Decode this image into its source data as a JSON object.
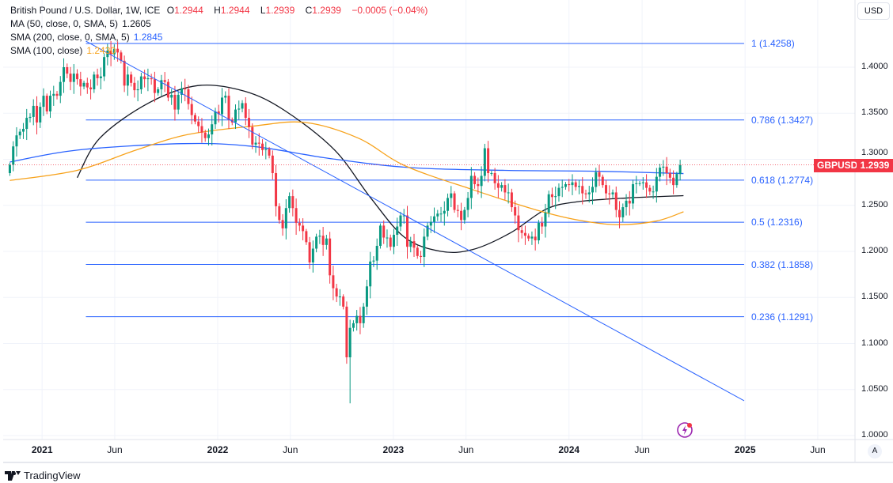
{
  "header": {
    "symbol_title": "British Pound / U.S. Dollar, 1W, ICE",
    "open_label": "O",
    "open": "1.2944",
    "high_label": "H",
    "high": "1.2944",
    "low_label": "L",
    "low": "1.2939",
    "close_label": "C",
    "close": "1.2939",
    "change": "−0.0005 (−0.04%)"
  },
  "indicators": [
    {
      "label": "MA (50, close, 0, SMA, 5)",
      "value": "1.2605",
      "color": "#131722"
    },
    {
      "label": "SMA (200, close, 0, SMA, 5)",
      "value": "1.2845",
      "color": "#2962ff"
    },
    {
      "label": "SMA (100, close)",
      "value": "1.2430",
      "color": "#f7a21b"
    }
  ],
  "price_axis": {
    "currency": "USD",
    "ticks": [
      "1.4000",
      "1.3500",
      "1.3000",
      "1.2500",
      "1.2000",
      "1.1500",
      "1.1000",
      "1.0500",
      "1.0000"
    ],
    "auto_label": "A"
  },
  "time_axis": {
    "ticks": [
      {
        "label": "2021",
        "date": "2021-01-01"
      },
      {
        "label": "Jun",
        "date": "2021-06-01"
      },
      {
        "label": "2022",
        "date": "2022-01-01"
      },
      {
        "label": "Jun",
        "date": "2022-06-01"
      },
      {
        "label": "2023",
        "date": "2023-01-01"
      },
      {
        "label": "Jun",
        "date": "2023-06-01"
      },
      {
        "label": "2024",
        "date": "2024-01-01"
      },
      {
        "label": "Jun",
        "date": "2024-06-01"
      },
      {
        "label": "2025",
        "date": "2025-01-01"
      },
      {
        "label": "Jun",
        "date": "2025-06-01"
      }
    ]
  },
  "last_price": {
    "symbol": "GBPUSD",
    "value": "1.2939",
    "color": "#f23645"
  },
  "fib_levels": [
    {
      "label": "1 (1.4258)",
      "price": 1.4258
    },
    {
      "label": "0.786 (1.3427)",
      "price": 1.3427
    },
    {
      "label": "0.618 (1.2774)",
      "price": 1.2774
    },
    {
      "label": "0.5 (1.2316)",
      "price": 1.2316
    },
    {
      "label": "0.382 (1.1858)",
      "price": 1.1858
    },
    {
      "label": "0.236 (1.1291)",
      "price": 1.1291
    }
  ],
  "brand": "TradingView",
  "chart_data": {
    "type": "candlestick",
    "interval": "1W",
    "first_week": "2020-10-26",
    "ylim": [
      1.0,
      1.44
    ],
    "colors": {
      "up": "#089981",
      "down": "#f23645",
      "fib": "#2962ff"
    },
    "closes": [
      1.294,
      1.314,
      1.326,
      1.33,
      1.333,
      1.345,
      1.346,
      1.358,
      1.34,
      1.357,
      1.369,
      1.352,
      1.369,
      1.371,
      1.369,
      1.384,
      1.4,
      1.393,
      1.384,
      1.393,
      1.387,
      1.379,
      1.383,
      1.378,
      1.376,
      1.392,
      1.388,
      1.39,
      1.411,
      1.418,
      1.414,
      1.42,
      1.416,
      1.407,
      1.38,
      1.392,
      1.383,
      1.375,
      1.376,
      1.39,
      1.387,
      1.388,
      1.387,
      1.372,
      1.376,
      1.386,
      1.384,
      1.367,
      1.37,
      1.354,
      1.37,
      1.377,
      1.376,
      1.36,
      1.348,
      1.341,
      1.336,
      1.329,
      1.323,
      1.327,
      1.338,
      1.352,
      1.349,
      1.367,
      1.369,
      1.343,
      1.34,
      1.354,
      1.355,
      1.361,
      1.345,
      1.335,
      1.316,
      1.318,
      1.317,
      1.31,
      1.311,
      1.304,
      1.285,
      1.249,
      1.234,
      1.225,
      1.247,
      1.26,
      1.247,
      1.231,
      1.228,
      1.222,
      1.21,
      1.188,
      1.203,
      1.216,
      1.217,
      1.207,
      1.214,
      1.174,
      1.16,
      1.151,
      1.151,
      1.14,
      1.085,
      1.117,
      1.122,
      1.13,
      1.122,
      1.14,
      1.162,
      1.189,
      1.19,
      1.206,
      1.228,
      1.215,
      1.215,
      1.205,
      1.218,
      1.227,
      1.239,
      1.239,
      1.205,
      1.211,
      1.204,
      1.195,
      1.194,
      1.216,
      1.228,
      1.232,
      1.238,
      1.241,
      1.241,
      1.244,
      1.258,
      1.263,
      1.245,
      1.244,
      1.234,
      1.245,
      1.258,
      1.282,
      1.273,
      1.271,
      1.282,
      1.312,
      1.285,
      1.285,
      1.274,
      1.269,
      1.272,
      1.264,
      1.264,
      1.248,
      1.239,
      1.223,
      1.22,
      1.217,
      1.214,
      1.216,
      1.212,
      1.231,
      1.227,
      1.242,
      1.262,
      1.259,
      1.26,
      1.269,
      1.27,
      1.273,
      1.272,
      1.275,
      1.27,
      1.271,
      1.263,
      1.262,
      1.264,
      1.27,
      1.286,
      1.281,
      1.272,
      1.263,
      1.262,
      1.264,
      1.245,
      1.237,
      1.248,
      1.255,
      1.252,
      1.273,
      1.274,
      1.274,
      1.275,
      1.269,
      1.265,
      1.265,
      1.281,
      1.291,
      1.292,
      1.285,
      1.28,
      1.272,
      1.284,
      1.2939
    ],
    "low_overrides": {
      "101": 1.035
    },
    "moving_averages": [
      {
        "name": "MA (50, close, 0, SMA, 5)",
        "color": "#131722",
        "points": [
          [
            "2021-03-15",
            1.28
          ],
          [
            "2021-05-01",
            1.323
          ],
          [
            "2021-08-10",
            1.361
          ],
          [
            "2021-11-20",
            1.38
          ],
          [
            "2022-02-25",
            1.374
          ],
          [
            "2022-05-20",
            1.353
          ],
          [
            "2022-09-01",
            1.31
          ],
          [
            "2022-11-15",
            1.258
          ],
          [
            "2023-01-25",
            1.215
          ],
          [
            "2023-04-10",
            1.2
          ],
          [
            "2023-06-15",
            1.202
          ],
          [
            "2023-09-01",
            1.22
          ],
          [
            "2023-11-15",
            1.246
          ],
          [
            "2024-01-20",
            1.254
          ],
          [
            "2024-05-01",
            1.258
          ],
          [
            "2024-08-26",
            1.2605
          ]
        ]
      },
      {
        "name": "SMA (200, close, 0, SMA, 5)",
        "color": "#2962ff",
        "points": [
          [
            "2020-10-26",
            1.297
          ],
          [
            "2021-03-15",
            1.31
          ],
          [
            "2021-10-20",
            1.317
          ],
          [
            "2022-03-15",
            1.314
          ],
          [
            "2022-08-20",
            1.301
          ],
          [
            "2023-02-05",
            1.291
          ],
          [
            "2023-08-20",
            1.288
          ],
          [
            "2024-03-01",
            1.287
          ],
          [
            "2024-08-26",
            1.2845
          ]
        ]
      },
      {
        "name": "SMA (100, close)",
        "color": "#f7a21b",
        "points": [
          [
            "2020-10-26",
            1.277
          ],
          [
            "2021-03-15",
            1.288
          ],
          [
            "2021-07-15",
            1.31
          ],
          [
            "2021-11-01",
            1.327
          ],
          [
            "2022-03-15",
            1.336
          ],
          [
            "2022-07-01",
            1.34
          ],
          [
            "2022-10-20",
            1.323
          ],
          [
            "2023-01-25",
            1.293
          ],
          [
            "2023-06-15",
            1.267
          ],
          [
            "2023-10-25",
            1.245
          ],
          [
            "2024-01-20",
            1.234
          ],
          [
            "2024-04-10",
            1.229
          ],
          [
            "2024-07-01",
            1.233
          ],
          [
            "2024-08-26",
            1.243
          ]
        ]
      }
    ],
    "trendline": [
      [
        "2021-04-02",
        1.4283
      ],
      [
        "2024-12-30",
        1.0378
      ]
    ],
    "fib_range": [
      "2021-04-02",
      "2024-12-30"
    ]
  }
}
